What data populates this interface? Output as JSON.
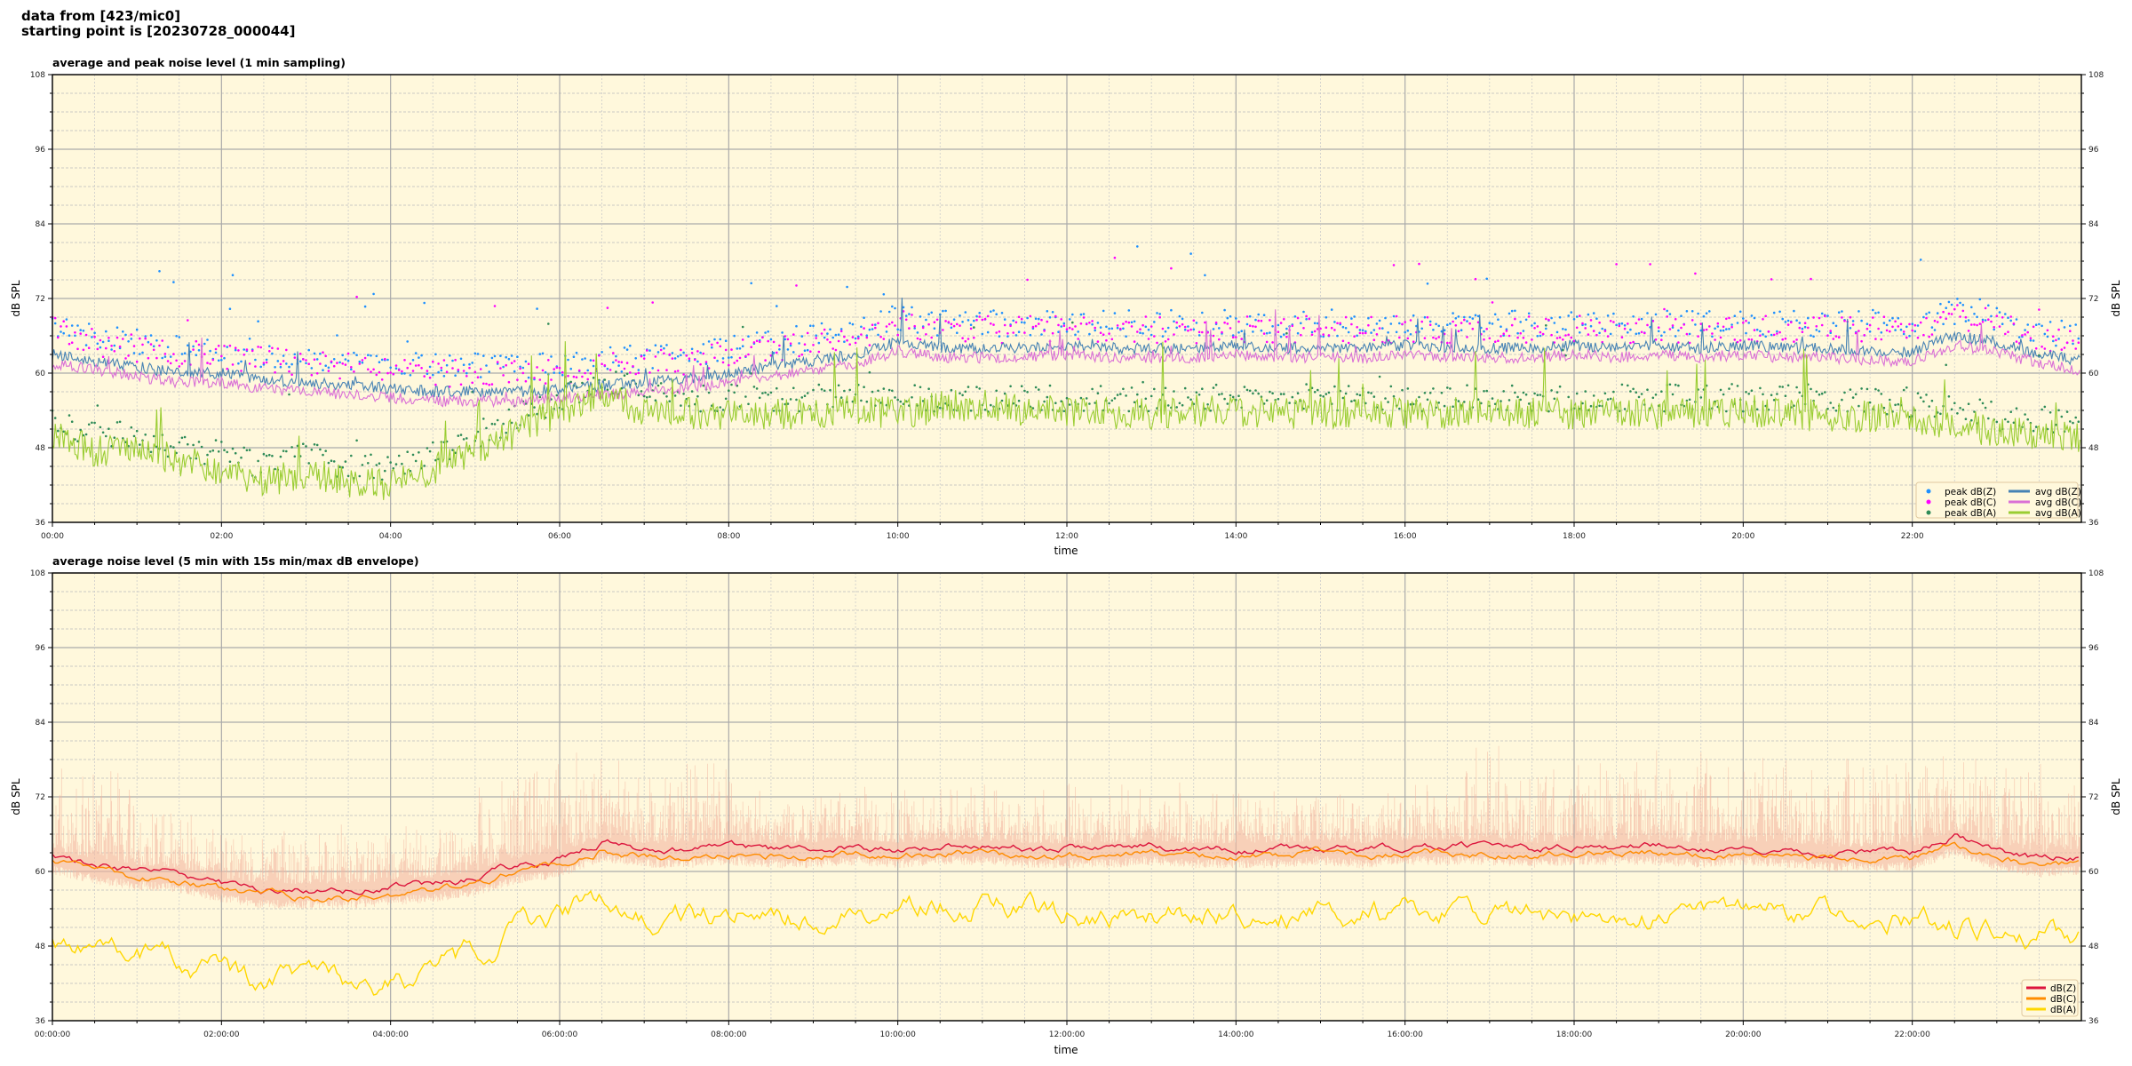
{
  "header": {
    "line1": "data from [423/mic0]",
    "line2": "starting point is [20230728_000044]"
  },
  "chart_data": [
    {
      "type": "line",
      "title": "average and peak noise level (1 min sampling)",
      "xlabel": "time",
      "ylabel": "dB SPL",
      "ylim": [
        36,
        108
      ],
      "xlim_hours": [
        0,
        24
      ],
      "yticks": [
        "36",
        "48",
        "60",
        "72",
        "84",
        "96",
        "108"
      ],
      "xticks": [
        "00:00",
        "02:00",
        "04:00",
        "06:00",
        "08:00",
        "10:00",
        "12:00",
        "14:00",
        "16:00",
        "18:00",
        "20:00",
        "22:00"
      ],
      "grid": true,
      "background": "#fff8dc",
      "legend_position": "lower-right",
      "x_step_minutes": 30,
      "series": [
        {
          "name": "peak dB(Z)",
          "kind": "scatter",
          "color": "#1e90ff",
          "values": [
            68,
            66,
            65,
            64,
            64,
            63,
            62.5,
            62,
            61.5,
            61,
            61,
            61,
            61.5,
            62,
            62.5,
            63,
            64,
            65,
            66,
            67,
            69,
            68,
            68,
            68,
            68,
            68,
            68,
            68,
            68,
            68,
            68,
            68,
            68,
            68,
            68,
            68,
            68,
            68,
            68,
            68,
            68,
            68,
            68,
            68,
            68,
            70,
            69,
            67,
            66
          ]
        },
        {
          "name": "peak dB(C)",
          "kind": "scatter",
          "color": "#ff00ff",
          "values": [
            67,
            65,
            64,
            63,
            63,
            62,
            61.5,
            61,
            60.5,
            60,
            60,
            60,
            60.5,
            61,
            61.5,
            62,
            63,
            64,
            65,
            66,
            68,
            67,
            67,
            67,
            67,
            67,
            67,
            67,
            67,
            67,
            67,
            67,
            67,
            67,
            67,
            67,
            67,
            67,
            67,
            67,
            67,
            67,
            67,
            67,
            67,
            69,
            68,
            66,
            65
          ]
        },
        {
          "name": "peak dB(A)",
          "kind": "scatter",
          "color": "#2e8b57",
          "values": [
            53,
            50,
            50,
            48,
            47,
            45,
            47,
            45,
            44.5,
            47,
            50,
            53,
            56,
            59,
            57,
            56,
            56,
            56,
            56,
            57,
            56,
            56,
            56,
            56,
            56,
            56,
            56,
            56,
            56,
            56,
            56,
            56,
            56,
            56,
            56,
            56,
            56,
            56,
            56,
            56,
            56,
            56,
            56,
            56,
            55,
            54.5,
            53,
            52.5,
            52
          ]
        },
        {
          "name": "avg dB(Z)",
          "kind": "line",
          "color": "#4682b4",
          "values": [
            63,
            62,
            61,
            60,
            60,
            59,
            58.5,
            58,
            57.5,
            57,
            57,
            57,
            57.5,
            58,
            58.5,
            59,
            60,
            61,
            62,
            63,
            65,
            64,
            64,
            64,
            64.5,
            64,
            64,
            64,
            64.5,
            64,
            64,
            64,
            64.5,
            64,
            64,
            64,
            64.5,
            64,
            64.5,
            64,
            64.5,
            64,
            64,
            63.5,
            63.5,
            66,
            65,
            63,
            62
          ]
        },
        {
          "name": "avg dB(C)",
          "kind": "line",
          "color": "#da70d6",
          "values": [
            61.5,
            60.5,
            59.5,
            58.5,
            58.5,
            57.5,
            57,
            56.5,
            56,
            55.5,
            55.5,
            55.5,
            56,
            56.5,
            57,
            57.5,
            58.5,
            59.5,
            60.5,
            61.5,
            63.5,
            62.5,
            62.5,
            62.5,
            63,
            62.5,
            62.5,
            62.5,
            63,
            62.5,
            62.5,
            62.5,
            63,
            62.5,
            62.5,
            62.5,
            63,
            62.5,
            63,
            62.5,
            63,
            62.5,
            62.5,
            62,
            62,
            64.5,
            63.5,
            61.5,
            60.5
          ]
        },
        {
          "name": "avg dB(A)",
          "kind": "line",
          "color": "#9acd32",
          "values": [
            50,
            47.5,
            47.5,
            46,
            44.5,
            42.5,
            44,
            42.5,
            42,
            44.5,
            47.5,
            50.5,
            54,
            56.5,
            54,
            53.5,
            53.5,
            53.5,
            53.5,
            54,
            53.5,
            54.5,
            55,
            54,
            54,
            53.5,
            53.5,
            54,
            53.5,
            53.5,
            53.5,
            54,
            53.5,
            53.5,
            54,
            53.5,
            53.5,
            54,
            53.5,
            53.5,
            54,
            53.5,
            53,
            53,
            52.5,
            52,
            50.5,
            50,
            49.5
          ]
        }
      ]
    },
    {
      "type": "line",
      "title": "average noise level (5 min with 15s min/max dB envelope)",
      "xlabel": "time",
      "ylabel": "dB SPL",
      "ylim": [
        36,
        108
      ],
      "xlim_hours": [
        0,
        24
      ],
      "yticks": [
        "36",
        "48",
        "60",
        "72",
        "84",
        "96",
        "108"
      ],
      "xticks": [
        "00:00:00",
        "02:00:00",
        "04:00:00",
        "06:00:00",
        "08:00:00",
        "10:00:00",
        "12:00:00",
        "14:00:00",
        "16:00:00",
        "18:00:00",
        "20:00:00",
        "22:00:00"
      ],
      "grid": true,
      "background": "#fff8dc",
      "legend_position": "lower-right",
      "x_step_minutes": 30,
      "envelope_color": "#f4b6a0",
      "series": [
        {
          "name": "dB(Z)",
          "color": "#dc143c",
          "values": [
            62.5,
            61,
            60,
            59.5,
            58,
            57,
            57,
            57,
            57.5,
            58,
            59,
            61,
            62,
            64.5,
            63.5,
            63.5,
            64,
            63.5,
            63.5,
            64,
            63.5,
            64,
            64,
            63.5,
            63.5,
            63.5,
            64,
            63.5,
            63.5,
            63.5,
            64,
            63.5,
            64,
            64,
            64,
            63.5,
            64,
            64,
            64,
            63.5,
            64,
            63.5,
            63,
            63,
            63,
            65.5,
            63,
            62,
            62.5
          ]
        },
        {
          "name": "dB(C)",
          "color": "#ff8c00",
          "values": [
            61.5,
            60,
            59,
            58.5,
            57,
            56,
            56,
            56,
            56.5,
            57,
            58,
            60,
            61,
            63.5,
            62.5,
            62.5,
            63,
            62.5,
            62.5,
            63,
            62.5,
            63,
            63,
            62.5,
            62.5,
            62.5,
            63,
            62.5,
            62.5,
            62.5,
            63,
            62.5,
            63,
            63,
            63,
            62.5,
            63,
            63,
            63,
            62.5,
            63,
            62.5,
            62,
            62,
            62,
            64.5,
            62,
            61,
            61.5
          ]
        },
        {
          "name": "dB(A)",
          "color": "#ffd700",
          "values": [
            50,
            47,
            47,
            45,
            44,
            42,
            44,
            42,
            41.5,
            44,
            47,
            50,
            53,
            56,
            53,
            53,
            52.5,
            53,
            52.5,
            53,
            53,
            54,
            55,
            53.5,
            53,
            53,
            53,
            53,
            53,
            53.5,
            53,
            53,
            53.5,
            53,
            53,
            53,
            53,
            53,
            52.5,
            53,
            53,
            53,
            52.5,
            52.5,
            52,
            51.5,
            50,
            49.5,
            49
          ]
        }
      ]
    }
  ]
}
